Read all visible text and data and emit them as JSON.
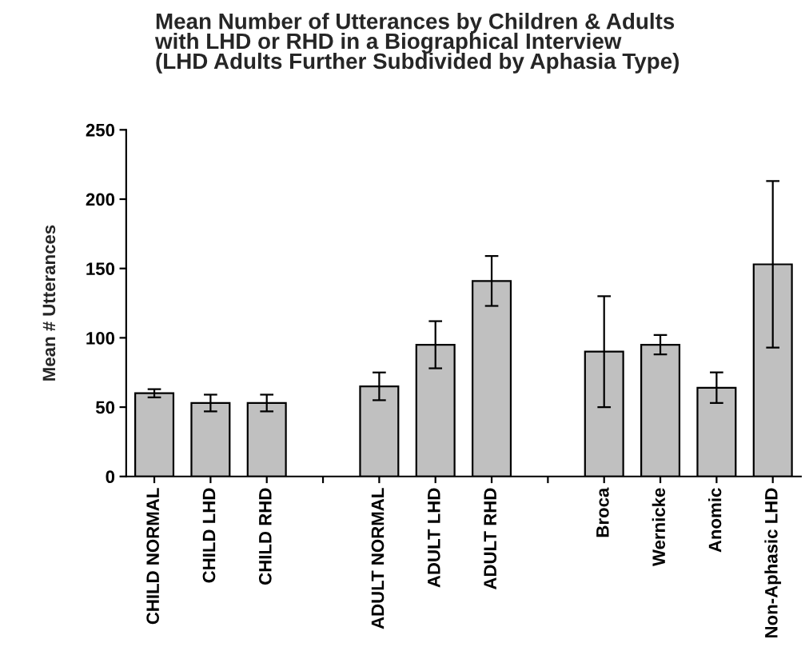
{
  "chart_data": {
    "type": "bar",
    "title": "Mean Number of Utterances by Children & Adults\nwith LHD or RHD in a Biographical Interview\n(LHD Adults Further Subdivided by Aphasia Type)",
    "ylabel": "Mean # Utterances",
    "categories": [
      "CHILD NORMAL",
      "CHILD LHD",
      "CHILD RHD",
      null,
      "ADULT NORMAL",
      "ADULT LHD",
      "ADULT RHD",
      null,
      "Broca",
      "Wernicke",
      "Anomic",
      "Non-Aphasic LHD"
    ],
    "values": [
      60,
      53,
      53,
      null,
      65,
      95,
      141,
      null,
      90,
      95,
      64,
      153
    ],
    "errors": [
      3,
      6,
      6,
      null,
      10,
      17,
      18,
      null,
      40,
      7,
      11,
      60
    ],
    "color": "#c0c0c0",
    "ylim": [
      0,
      250
    ],
    "yticks": [
      0,
      50,
      100,
      150,
      200,
      250
    ],
    "grid": false
  }
}
